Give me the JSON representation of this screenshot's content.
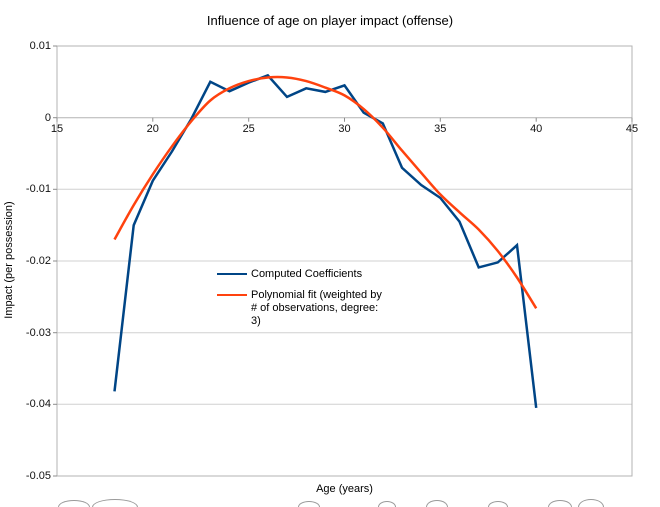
{
  "chart_data": {
    "type": "line",
    "title": "Influence of age on player impact (offense)",
    "xlabel": "Age (years)",
    "ylabel": "Impact (per possession)",
    "xlim": [
      15,
      45
    ],
    "ylim": [
      -0.05,
      0.01
    ],
    "x_ticks": [
      15,
      20,
      25,
      30,
      35,
      40,
      45
    ],
    "x_tick_labels": [
      "15",
      "20",
      "25",
      "30",
      "35",
      "40",
      "45"
    ],
    "y_ticks": [
      0.01,
      0,
      -0.01,
      -0.02,
      -0.03,
      -0.04,
      -0.05
    ],
    "y_tick_labels": [
      "0.01",
      "0",
      "-0.01",
      "-0.02",
      "-0.03",
      "-0.04",
      "-0.05"
    ],
    "grid": "horizontal-only",
    "x_axis_at_zero": true,
    "legend_position": "inside-left-center",
    "x": [
      18,
      19,
      20,
      21,
      22,
      23,
      24,
      25,
      26,
      27,
      28,
      29,
      30,
      31,
      32,
      33,
      34,
      35,
      36,
      37,
      38,
      39,
      40
    ],
    "series": [
      {
        "name": "Computed Coefficients",
        "color": "#004586",
        "smooth": false,
        "values": [
          -0.0382,
          -0.015,
          -0.0088,
          -0.0047,
          -0.0002,
          0.005,
          0.0037,
          0.0049,
          0.0059,
          0.0029,
          0.0041,
          0.0036,
          0.0045,
          0.0007,
          -0.0008,
          -0.007,
          -0.0094,
          -0.0112,
          -0.0145,
          -0.0209,
          -0.0202,
          -0.0178,
          -0.0405
        ]
      },
      {
        "name": "Polynomial fit (weighted by # of observations, degree: 3)",
        "color": "#FF420E",
        "smooth": true,
        "values": [
          -0.017,
          -0.0122,
          -0.0079,
          -0.004,
          -0.0005,
          0.0024,
          0.0041,
          0.0051,
          0.0056,
          0.0056,
          0.0051,
          0.0042,
          0.0031,
          0.0012,
          -0.0014,
          -0.0046,
          -0.0077,
          -0.0107,
          -0.0132,
          -0.0156,
          -0.0186,
          -0.0223,
          -0.0266
        ]
      }
    ],
    "legend": [
      {
        "color": "#004586",
        "label_lines": [
          "Computed Coefficients"
        ]
      },
      {
        "color": "#FF420E",
        "label_lines": [
          "Polynomial fit (weighted by",
          "# of observations, degree:",
          "3)"
        ]
      }
    ],
    "colors": {
      "plot_border": "#b3b3b3",
      "gridline": "#d0d0d0",
      "axis_line": "#b3b3b3",
      "tick_mark": "#8c8c8c",
      "text": "#000000",
      "background": "#ffffff"
    }
  }
}
